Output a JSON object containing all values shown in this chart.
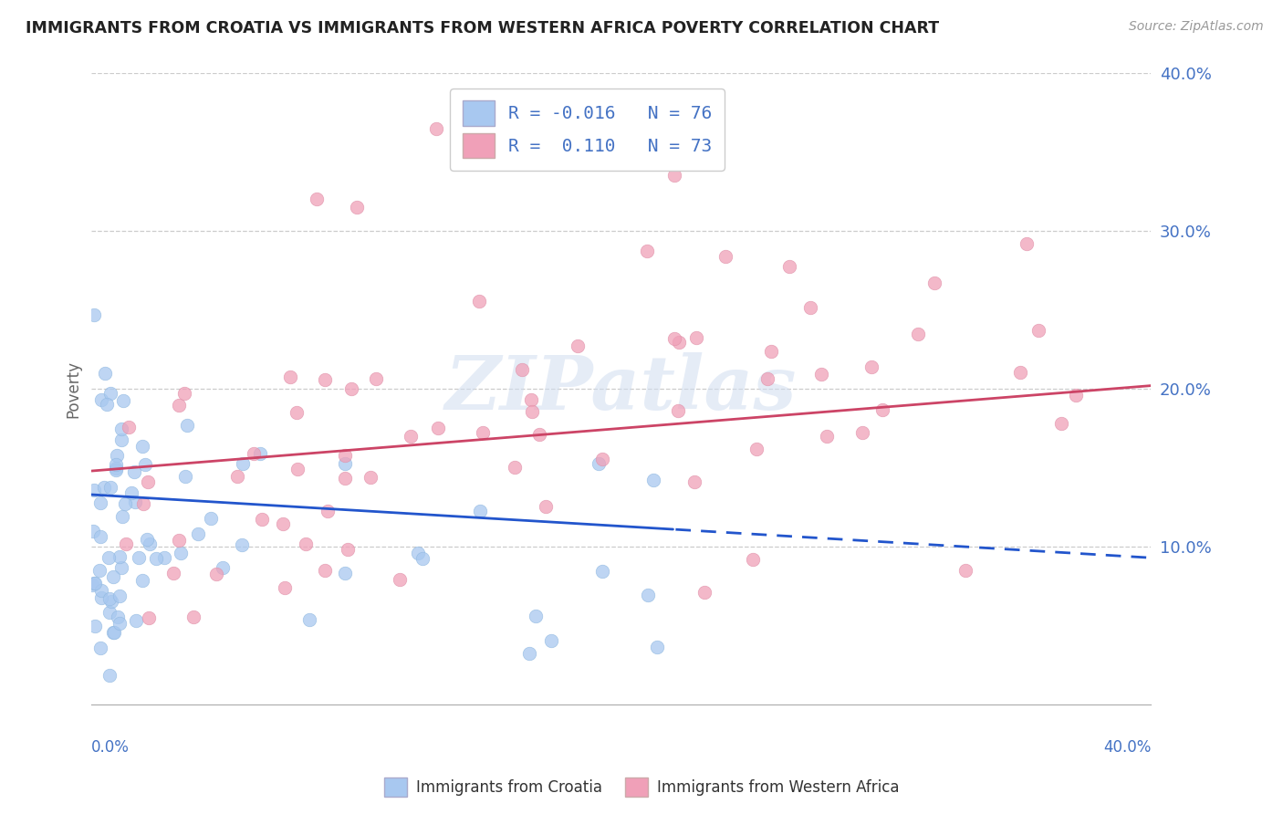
{
  "title": "IMMIGRANTS FROM CROATIA VS IMMIGRANTS FROM WESTERN AFRICA POVERTY CORRELATION CHART",
  "source": "Source: ZipAtlas.com",
  "ylabel": "Poverty",
  "series1_name": "Immigrants from Croatia",
  "series1_color": "#a8c8f0",
  "series1_line_color": "#2255cc",
  "series1_R": "-0.016",
  "series1_N": "76",
  "series2_name": "Immigrants from Western Africa",
  "series2_color": "#f0a0b8",
  "series2_line_color": "#cc4466",
  "series2_R": "0.110",
  "series2_N": "73",
  "watermark_text": "ZIPatlas",
  "background_color": "#ffffff",
  "grid_color": "#cccccc",
  "legend_text_color": "#4472c4",
  "title_color": "#222222",
  "xlim": [
    0.0,
    0.4
  ],
  "ylim": [
    0.0,
    0.4
  ],
  "yticks": [
    0.1,
    0.2,
    0.3,
    0.4
  ],
  "ytick_labels": [
    "10.0%",
    "20.0%",
    "30.0%",
    "40.0%"
  ]
}
